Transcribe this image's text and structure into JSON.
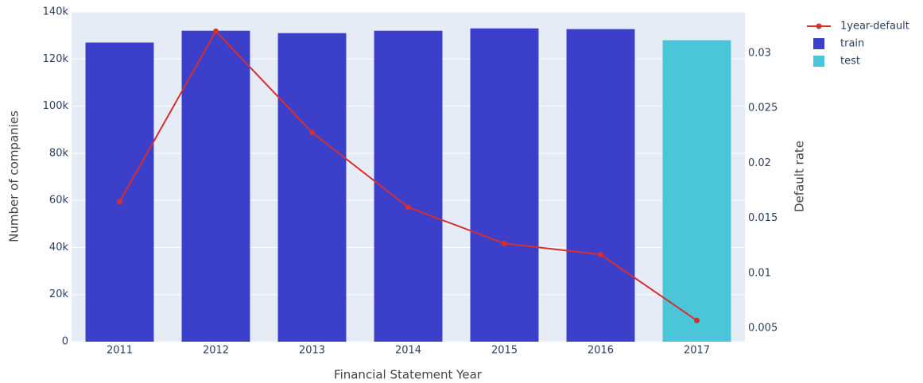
{
  "chart_data": {
    "type": "bar",
    "categories": [
      "2011",
      "2012",
      "2013",
      "2014",
      "2015",
      "2016",
      "2017"
    ],
    "series": [
      {
        "name": "train",
        "type": "bar",
        "color": "#3b3fc9",
        "values": [
          127000,
          132000,
          131000,
          132000,
          133000,
          132700,
          null
        ]
      },
      {
        "name": "test",
        "type": "bar",
        "color": "#4bc6d9",
        "values": [
          null,
          null,
          null,
          null,
          null,
          null,
          128000
        ]
      },
      {
        "name": "1year-default",
        "type": "line",
        "axis": "y2",
        "color": "#d62f2f",
        "values": [
          0.0165,
          0.032,
          0.0228,
          0.016,
          0.0127,
          0.0117,
          0.0057
        ]
      }
    ],
    "xlabel": "Financial Statement Year",
    "ylabel": "Number of companies",
    "y2label": "Default rate",
    "ylim": [
      0,
      140000
    ],
    "yticks": [
      0,
      {
        "value": 20000,
        "label": "20k"
      },
      {
        "value": 40000,
        "label": "40k"
      },
      {
        "value": 60000,
        "label": "60k"
      },
      {
        "value": 80000,
        "label": "80k"
      },
      {
        "value": 100000,
        "label": "100k"
      },
      {
        "value": 120000,
        "label": "120k"
      },
      {
        "value": 140000,
        "label": "140k"
      }
    ],
    "y2lim": [
      0.00377,
      0.03376
    ],
    "y2ticks": [
      0.005,
      0.01,
      0.015,
      0.02,
      0.025,
      0.03
    ],
    "grid": true
  }
}
